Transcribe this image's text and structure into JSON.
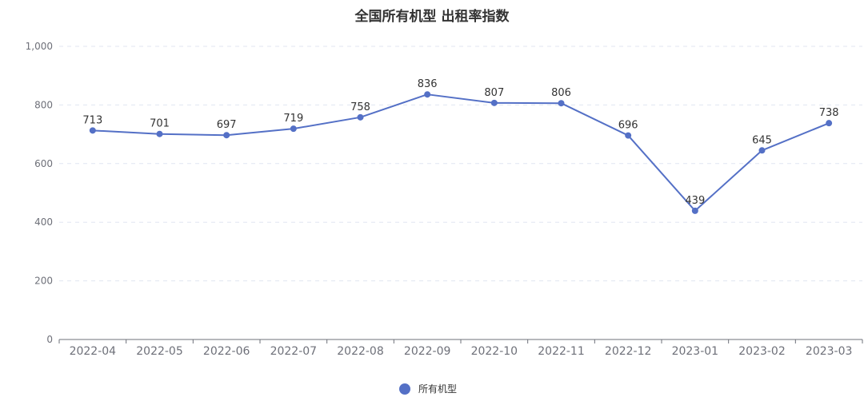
{
  "chart_data": {
    "type": "line",
    "title": "全国所有机型 出租率指数",
    "categories": [
      "2022-04",
      "2022-05",
      "2022-06",
      "2022-07",
      "2022-08",
      "2022-09",
      "2022-10",
      "2022-11",
      "2022-12",
      "2023-01",
      "2023-02",
      "2023-03"
    ],
    "series": [
      {
        "name": "所有机型",
        "values": [
          713,
          701,
          697,
          719,
          758,
          836,
          807,
          806,
          696,
          439,
          645,
          738
        ]
      }
    ],
    "ylim": [
      0,
      1000
    ],
    "yticks": [
      "0",
      "200",
      "400",
      "600",
      "800",
      "1,000"
    ],
    "grid": true,
    "legend": "bottom-center",
    "colors": {
      "series": "#5470c6",
      "axis_label": "#6e7079",
      "grid": "#e0e6f1",
      "title": "#333333"
    }
  }
}
